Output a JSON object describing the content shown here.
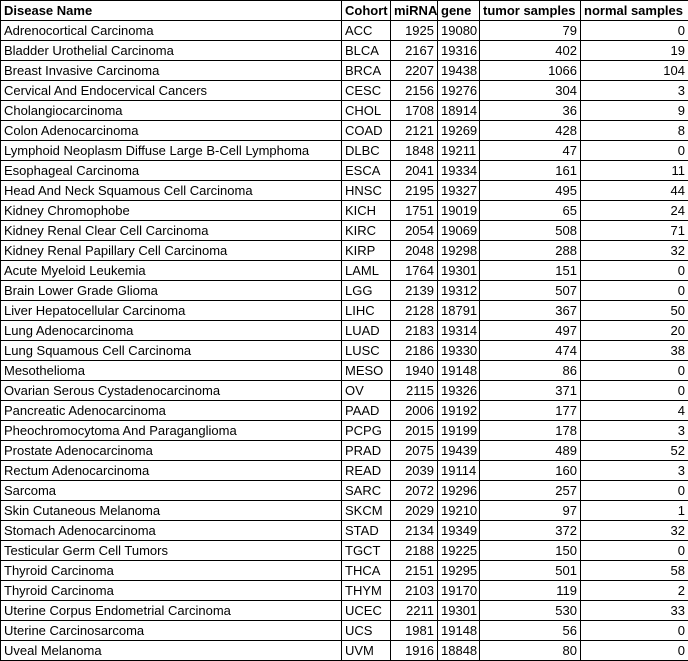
{
  "chart_data": {
    "type": "table",
    "columns": [
      "Disease Name",
      "Cohort",
      "miRNA",
      "gene",
      "tumor samples",
      "normal samples"
    ],
    "rows": [
      [
        "Adrenocortical Carcinoma",
        "ACC",
        1925,
        19080,
        79,
        0
      ],
      [
        "Bladder Urothelial Carcinoma",
        "BLCA",
        2167,
        19316,
        402,
        19
      ],
      [
        "Breast Invasive Carcinoma",
        "BRCA",
        2207,
        19438,
        1066,
        104
      ],
      [
        "Cervical And Endocervical Cancers",
        "CESC",
        2156,
        19276,
        304,
        3
      ],
      [
        "Cholangiocarcinoma",
        "CHOL",
        1708,
        18914,
        36,
        9
      ],
      [
        "Colon Adenocarcinoma",
        "COAD",
        2121,
        19269,
        428,
        8
      ],
      [
        "Lymphoid Neoplasm Diffuse Large B-Cell Lymphoma",
        "DLBC",
        1848,
        19211,
        47,
        0
      ],
      [
        "Esophageal Carcinoma",
        "ESCA",
        2041,
        19334,
        161,
        11
      ],
      [
        "Head And Neck Squamous Cell Carcinoma",
        "HNSC",
        2195,
        19327,
        495,
        44
      ],
      [
        "Kidney Chromophobe",
        "KICH",
        1751,
        19019,
        65,
        24
      ],
      [
        "Kidney Renal Clear Cell Carcinoma",
        "KIRC",
        2054,
        19069,
        508,
        71
      ],
      [
        "Kidney Renal Papillary Cell Carcinoma",
        "KIRP",
        2048,
        19298,
        288,
        32
      ],
      [
        "Acute Myeloid Leukemia",
        "LAML",
        1764,
        19301,
        151,
        0
      ],
      [
        "Brain Lower Grade Glioma",
        "LGG",
        2139,
        19312,
        507,
        0
      ],
      [
        "Liver Hepatocellular Carcinoma",
        "LIHC",
        2128,
        18791,
        367,
        50
      ],
      [
        "Lung Adenocarcinoma",
        "LUAD",
        2183,
        19314,
        497,
        20
      ],
      [
        "Lung Squamous Cell Carcinoma",
        "LUSC",
        2186,
        19330,
        474,
        38
      ],
      [
        "Mesothelioma",
        "MESO",
        1940,
        19148,
        86,
        0
      ],
      [
        "Ovarian Serous Cystadenocarcinoma",
        "OV",
        2115,
        19326,
        371,
        0
      ],
      [
        "Pancreatic Adenocarcinoma",
        "PAAD",
        2006,
        19192,
        177,
        4
      ],
      [
        "Pheochromocytoma And Paraganglioma",
        "PCPG",
        2015,
        19199,
        178,
        3
      ],
      [
        "Prostate Adenocarcinoma",
        "PRAD",
        2075,
        19439,
        489,
        52
      ],
      [
        "Rectum Adenocarcinoma",
        "READ",
        2039,
        19114,
        160,
        3
      ],
      [
        "Sarcoma",
        "SARC",
        2072,
        19296,
        257,
        0
      ],
      [
        "Skin Cutaneous Melanoma",
        "SKCM",
        2029,
        19210,
        97,
        1
      ],
      [
        "Stomach Adenocarcinoma",
        "STAD",
        2134,
        19349,
        372,
        32
      ],
      [
        "Testicular Germ Cell Tumors",
        "TGCT",
        2188,
        19225,
        150,
        0
      ],
      [
        "Thyroid Carcinoma",
        "THCA",
        2151,
        19295,
        501,
        58
      ],
      [
        "Thyroid Carcinoma",
        "THYM",
        2103,
        19170,
        119,
        2
      ],
      [
        "Uterine Corpus Endometrial Carcinoma",
        "UCEC",
        2211,
        19301,
        530,
        33
      ],
      [
        "Uterine Carcinosarcoma",
        "UCS",
        1981,
        19148,
        56,
        0
      ],
      [
        "Uveal Melanoma",
        "UVM",
        1916,
        18848,
        80,
        0
      ]
    ]
  }
}
